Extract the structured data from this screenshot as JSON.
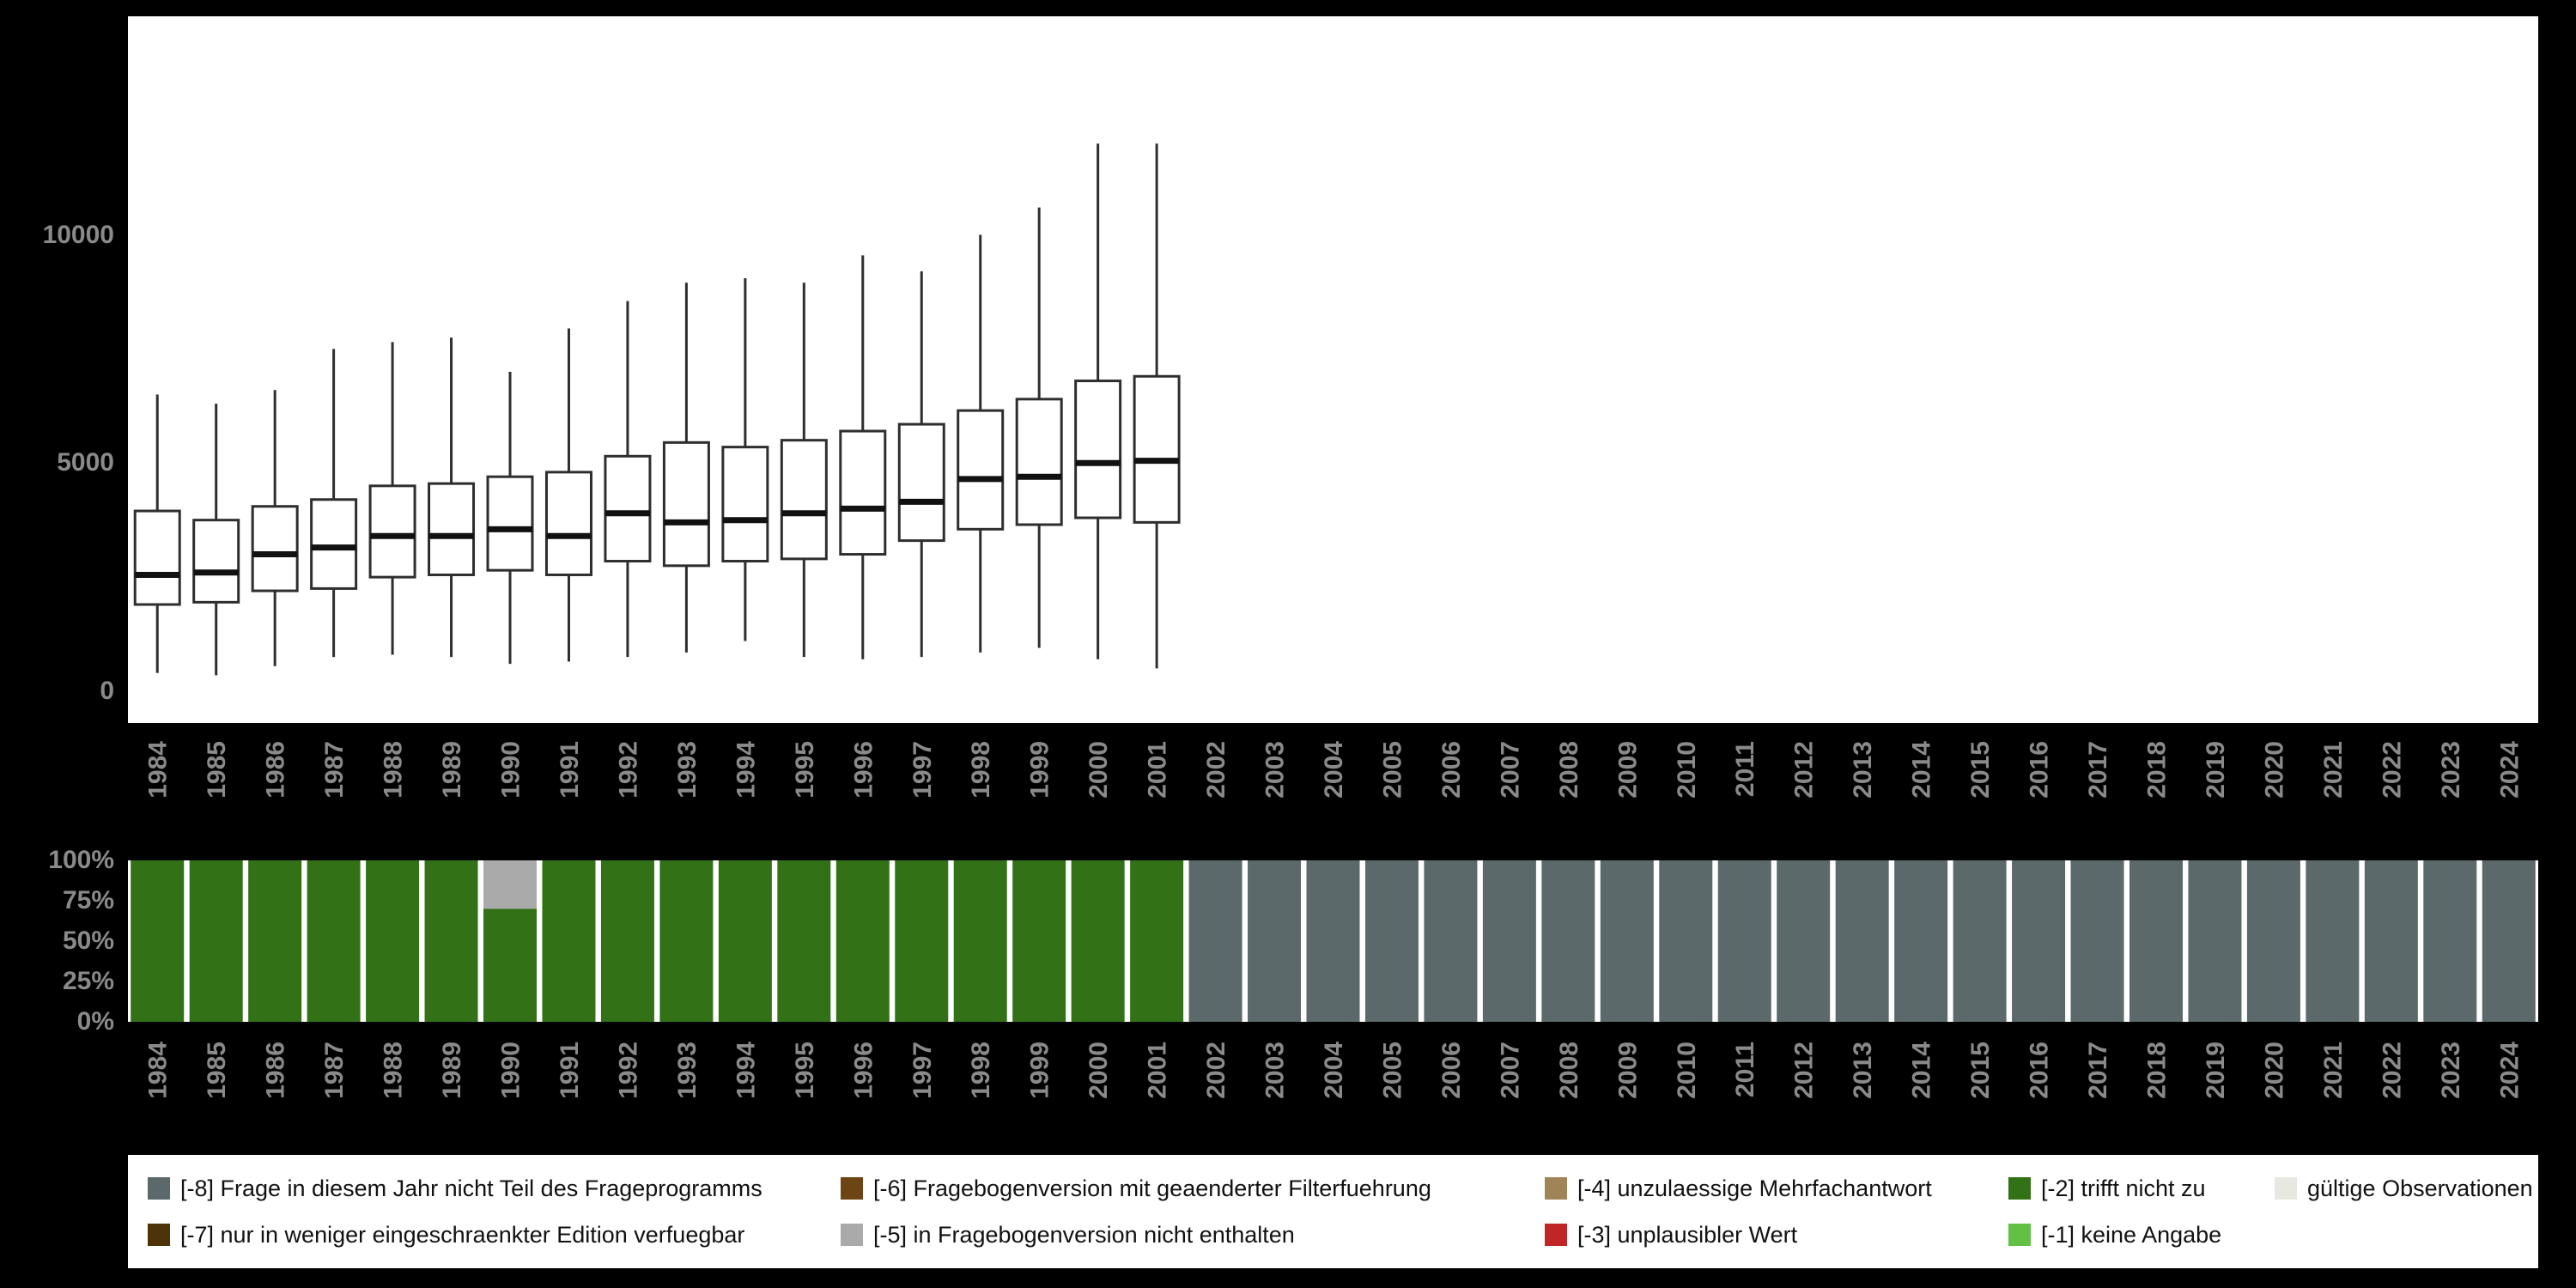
{
  "background": "#000000",
  "panel_bg": "#ffffff",
  "axis": {
    "text_color": "#8a8a8a",
    "years": [
      "1984",
      "1985",
      "1986",
      "1987",
      "1988",
      "1989",
      "1990",
      "1991",
      "1992",
      "1993",
      "1994",
      "1995",
      "1996",
      "1997",
      "1998",
      "1999",
      "2000",
      "2001",
      "2002",
      "2003",
      "2004",
      "2005",
      "2006",
      "2007",
      "2008",
      "2009",
      "2010",
      "2011",
      "2012",
      "2013",
      "2014",
      "2015",
      "2016",
      "2017",
      "2018",
      "2019",
      "2020",
      "2021",
      "2022",
      "2023",
      "2024"
    ],
    "box_yticks": [
      {
        "value": 0,
        "label": "0"
      },
      {
        "value": 5000,
        "label": "5000"
      },
      {
        "value": 10000,
        "label": "10000"
      }
    ],
    "pct_yticks": [
      {
        "pct": 100,
        "label": "100%"
      },
      {
        "pct": 75,
        "label": "75%"
      },
      {
        "pct": 50,
        "label": "50%"
      },
      {
        "pct": 25,
        "label": "25%"
      },
      {
        "pct": 0,
        "label": "0%"
      }
    ]
  },
  "chart_data": [
    {
      "type": "boxplot",
      "title": "",
      "xlabel": "",
      "ylabel": "",
      "ylim": [
        0,
        12500
      ],
      "yticks": [
        0,
        5000,
        10000
      ],
      "x_range": [
        "1984",
        "2024"
      ],
      "series": [
        {
          "year": "1984",
          "whisker_low": 400,
          "q1": 1900,
          "median": 2550,
          "q3": 3950,
          "whisker_high": 6500
        },
        {
          "year": "1985",
          "whisker_low": 350,
          "q1": 1950,
          "median": 2600,
          "q3": 3750,
          "whisker_high": 6300
        },
        {
          "year": "1986",
          "whisker_low": 550,
          "q1": 2200,
          "median": 3000,
          "q3": 4050,
          "whisker_high": 6600
        },
        {
          "year": "1987",
          "whisker_low": 750,
          "q1": 2250,
          "median": 3150,
          "q3": 4200,
          "whisker_high": 7500
        },
        {
          "year": "1988",
          "whisker_low": 800,
          "q1": 2500,
          "median": 3400,
          "q3": 4500,
          "whisker_high": 7650
        },
        {
          "year": "1989",
          "whisker_low": 750,
          "q1": 2550,
          "median": 3400,
          "q3": 4550,
          "whisker_high": 7750
        },
        {
          "year": "1990",
          "whisker_low": 600,
          "q1": 2650,
          "median": 3550,
          "q3": 4700,
          "whisker_high": 7000
        },
        {
          "year": "1991",
          "whisker_low": 650,
          "q1": 2550,
          "median": 3400,
          "q3": 4800,
          "whisker_high": 7950
        },
        {
          "year": "1992",
          "whisker_low": 750,
          "q1": 2850,
          "median": 3900,
          "q3": 5150,
          "whisker_high": 8550
        },
        {
          "year": "1993",
          "whisker_low": 850,
          "q1": 2750,
          "median": 3700,
          "q3": 5450,
          "whisker_high": 8950
        },
        {
          "year": "1994",
          "whisker_low": 1100,
          "q1": 2850,
          "median": 3750,
          "q3": 5350,
          "whisker_high": 9050
        },
        {
          "year": "1995",
          "whisker_low": 750,
          "q1": 2900,
          "median": 3900,
          "q3": 5500,
          "whisker_high": 8950
        },
        {
          "year": "1996",
          "whisker_low": 700,
          "q1": 3000,
          "median": 4000,
          "q3": 5700,
          "whisker_high": 9550
        },
        {
          "year": "1997",
          "whisker_low": 750,
          "q1": 3300,
          "median": 4150,
          "q3": 5850,
          "whisker_high": 9200
        },
        {
          "year": "1998",
          "whisker_low": 850,
          "q1": 3550,
          "median": 4650,
          "q3": 6150,
          "whisker_high": 10000
        },
        {
          "year": "1999",
          "whisker_low": 950,
          "q1": 3650,
          "median": 4700,
          "q3": 6400,
          "whisker_high": 10600
        },
        {
          "year": "2000",
          "whisker_low": 700,
          "q1": 3800,
          "median": 5000,
          "q3": 6800,
          "whisker_high": 12000
        },
        {
          "year": "2001",
          "whisker_low": 500,
          "q1": 3700,
          "median": 5050,
          "q3": 6900,
          "whisker_high": 12000
        }
      ]
    },
    {
      "type": "stacked-bar-percent",
      "title": "",
      "ylim_percent": [
        0,
        100
      ],
      "yticks_percent": [
        0,
        25,
        50,
        75,
        100
      ],
      "bars": [
        {
          "year": "1984",
          "segments": [
            {
              "code": "-2",
              "pct": 100
            }
          ]
        },
        {
          "year": "1985",
          "segments": [
            {
              "code": "-2",
              "pct": 100
            }
          ]
        },
        {
          "year": "1986",
          "segments": [
            {
              "code": "-2",
              "pct": 100
            }
          ]
        },
        {
          "year": "1987",
          "segments": [
            {
              "code": "-2",
              "pct": 100
            }
          ]
        },
        {
          "year": "1988",
          "segments": [
            {
              "code": "-2",
              "pct": 100
            }
          ]
        },
        {
          "year": "1989",
          "segments": [
            {
              "code": "-2",
              "pct": 100
            }
          ]
        },
        {
          "year": "1990",
          "segments": [
            {
              "code": "-5",
              "pct": 30
            },
            {
              "code": "-2",
              "pct": 70
            }
          ]
        },
        {
          "year": "1991",
          "segments": [
            {
              "code": "-2",
              "pct": 100
            }
          ]
        },
        {
          "year": "1992",
          "segments": [
            {
              "code": "-2",
              "pct": 100
            }
          ]
        },
        {
          "year": "1993",
          "segments": [
            {
              "code": "-2",
              "pct": 100
            }
          ]
        },
        {
          "year": "1994",
          "segments": [
            {
              "code": "-2",
              "pct": 100
            }
          ]
        },
        {
          "year": "1995",
          "segments": [
            {
              "code": "-2",
              "pct": 100
            }
          ]
        },
        {
          "year": "1996",
          "segments": [
            {
              "code": "-2",
              "pct": 100
            }
          ]
        },
        {
          "year": "1997",
          "segments": [
            {
              "code": "-2",
              "pct": 100
            }
          ]
        },
        {
          "year": "1998",
          "segments": [
            {
              "code": "-2",
              "pct": 100
            }
          ]
        },
        {
          "year": "1999",
          "segments": [
            {
              "code": "-2",
              "pct": 100
            }
          ]
        },
        {
          "year": "2000",
          "segments": [
            {
              "code": "-2",
              "pct": 100
            }
          ]
        },
        {
          "year": "2001",
          "segments": [
            {
              "code": "-2",
              "pct": 100
            }
          ]
        },
        {
          "year": "2002",
          "segments": [
            {
              "code": "-8",
              "pct": 100
            }
          ]
        },
        {
          "year": "2003",
          "segments": [
            {
              "code": "-8",
              "pct": 100
            }
          ]
        },
        {
          "year": "2004",
          "segments": [
            {
              "code": "-8",
              "pct": 100
            }
          ]
        },
        {
          "year": "2005",
          "segments": [
            {
              "code": "-8",
              "pct": 100
            }
          ]
        },
        {
          "year": "2006",
          "segments": [
            {
              "code": "-8",
              "pct": 100
            }
          ]
        },
        {
          "year": "2007",
          "segments": [
            {
              "code": "-8",
              "pct": 100
            }
          ]
        },
        {
          "year": "2008",
          "segments": [
            {
              "code": "-8",
              "pct": 100
            }
          ]
        },
        {
          "year": "2009",
          "segments": [
            {
              "code": "-8",
              "pct": 100
            }
          ]
        },
        {
          "year": "2010",
          "segments": [
            {
              "code": "-8",
              "pct": 100
            }
          ]
        },
        {
          "year": "2011",
          "segments": [
            {
              "code": "-8",
              "pct": 100
            }
          ]
        },
        {
          "year": "2012",
          "segments": [
            {
              "code": "-8",
              "pct": 100
            }
          ]
        },
        {
          "year": "2013",
          "segments": [
            {
              "code": "-8",
              "pct": 100
            }
          ]
        },
        {
          "year": "2014",
          "segments": [
            {
              "code": "-8",
              "pct": 100
            }
          ]
        },
        {
          "year": "2015",
          "segments": [
            {
              "code": "-8",
              "pct": 100
            }
          ]
        },
        {
          "year": "2016",
          "segments": [
            {
              "code": "-8",
              "pct": 100
            }
          ]
        },
        {
          "year": "2017",
          "segments": [
            {
              "code": "-8",
              "pct": 100
            }
          ]
        },
        {
          "year": "2018",
          "segments": [
            {
              "code": "-8",
              "pct": 100
            }
          ]
        },
        {
          "year": "2019",
          "segments": [
            {
              "code": "-8",
              "pct": 100
            }
          ]
        },
        {
          "year": "2020",
          "segments": [
            {
              "code": "-8",
              "pct": 100
            }
          ]
        },
        {
          "year": "2021",
          "segments": [
            {
              "code": "-8",
              "pct": 100
            }
          ]
        },
        {
          "year": "2022",
          "segments": [
            {
              "code": "-8",
              "pct": 100
            }
          ]
        },
        {
          "year": "2023",
          "segments": [
            {
              "code": "-8",
              "pct": 100
            }
          ]
        },
        {
          "year": "2024",
          "segments": [
            {
              "code": "-8",
              "pct": 100
            }
          ]
        }
      ]
    }
  ],
  "legend": {
    "columns": [
      [
        {
          "code": "-8",
          "label": "[-8] Frage in diesem Jahr nicht Teil des Frageprogramms"
        },
        {
          "code": "-7",
          "label": "[-7] nur in weniger eingeschraenkter Edition verfuegbar"
        }
      ],
      [
        {
          "code": "-6",
          "label": "[-6] Fragebogenversion mit geaenderter Filterfuehrung"
        },
        {
          "code": "-5",
          "label": "[-5] in Fragebogenversion nicht enthalten"
        }
      ],
      [
        {
          "code": "-4",
          "label": "[-4] unzulaessige Mehrfachantwort"
        },
        {
          "code": "-3",
          "label": "[-3] unplausibler Wert"
        }
      ],
      [
        {
          "code": "-2",
          "label": "[-2] trifft nicht zu"
        },
        {
          "code": "-1",
          "label": "[-1] keine Angabe"
        }
      ],
      [
        {
          "code": "valid",
          "label": "gültige Observationen"
        }
      ]
    ]
  },
  "colors": {
    "-8": "#5b696b",
    "-7": "#4f3308",
    "-6": "#6d4514",
    "-5": "#aaaaaa",
    "-4": "#a08457",
    "-3": "#bf2626",
    "-2": "#337117",
    "-1": "#62c144",
    "valid": "#e8e8e3",
    "box_stroke": "#2e2e2e",
    "median": "#111111"
  }
}
